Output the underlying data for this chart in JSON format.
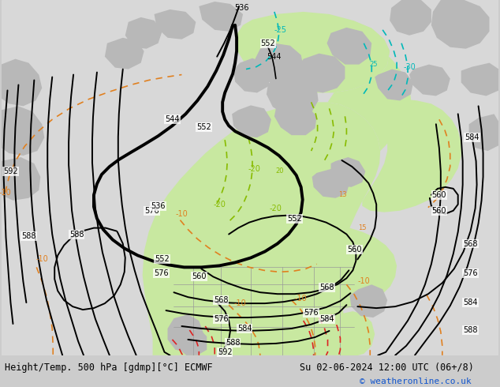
{
  "title_left": "Height/Temp. 500 hPa [gdmp][°C] ECMWF",
  "title_right": "Su 02-06-2024 12:00 UTC (06+/8)",
  "copyright": "© weatheronline.co.uk",
  "figsize": [
    6.34,
    4.9
  ],
  "dpi": 100,
  "map_bg": "#d8d8d8",
  "green": "#c8e8a0",
  "gray_land": "#b8b8b8",
  "footer_bg": "#cccccc",
  "black": "#000000",
  "orange": "#e08020",
  "cyan": "#00b8b8",
  "lime": "#88bb00",
  "red": "#dd2222"
}
